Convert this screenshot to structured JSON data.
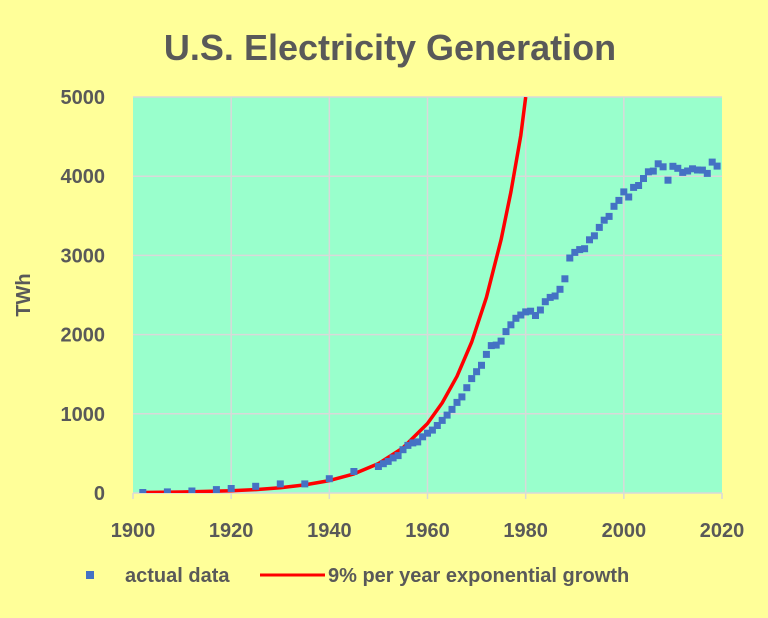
{
  "chart_data": {
    "type": "scatter",
    "title": "U.S. Electricity Generation",
    "xlabel": "",
    "ylabel": "TWh",
    "xlim": [
      1900,
      2020
    ],
    "ylim": [
      0,
      5000
    ],
    "x_ticks": [
      "1900",
      "1920",
      "1940",
      "1960",
      "1980",
      "2000",
      "2020"
    ],
    "y_ticks": [
      "0",
      "1000",
      "2000",
      "3000",
      "4000",
      "5000"
    ],
    "grid": true,
    "legend_position": "bottom",
    "colors": {
      "background": "#ffff99",
      "plot_area": "#99ffcc",
      "grid": "#d9d9d9",
      "actual_data": "#4472c4",
      "exponential": "#ff0000"
    },
    "series": [
      {
        "name": "actual data",
        "type": "scatter",
        "x": [
          1902,
          1907,
          1912,
          1917,
          1920,
          1925,
          1930,
          1935,
          1940,
          1945,
          1950,
          1951,
          1952,
          1953,
          1954,
          1955,
          1956,
          1957,
          1958,
          1959,
          1960,
          1961,
          1962,
          1963,
          1964,
          1965,
          1966,
          1967,
          1968,
          1969,
          1970,
          1971,
          1972,
          1973,
          1974,
          1975,
          1976,
          1977,
          1978,
          1979,
          1980,
          1981,
          1982,
          1983,
          1984,
          1985,
          1986,
          1987,
          1988,
          1989,
          1990,
          1991,
          1992,
          1993,
          1994,
          1995,
          1996,
          1997,
          1998,
          1999,
          2000,
          2001,
          2002,
          2003,
          2004,
          2005,
          2006,
          2007,
          2008,
          2009,
          2010,
          2011,
          2012,
          2013,
          2014,
          2015,
          2016,
          2017,
          2018,
          2019
        ],
        "y": [
          6,
          14,
          25,
          43,
          57,
          85,
          115,
          115,
          180,
          271,
          334,
          370,
          399,
          443,
          472,
          547,
          601,
          632,
          645,
          710,
          755,
          794,
          852,
          917,
          984,
          1055,
          1144,
          1214,
          1329,
          1445,
          1532,
          1613,
          1750,
          1861,
          1867,
          1918,
          2038,
          2124,
          2206,
          2247,
          2286,
          2295,
          2241,
          2310,
          2416,
          2470,
          2487,
          2572,
          2704,
          2967,
          3038,
          3073,
          3084,
          3197,
          3247,
          3353,
          3444,
          3492,
          3620,
          3695,
          3802,
          3737,
          3858,
          3883,
          3971,
          4055,
          4065,
          4157,
          4119,
          3950,
          4125,
          4100,
          4048,
          4066,
          4094,
          4078,
          4077,
          4035,
          4178,
          4127
        ]
      },
      {
        "name": "9% per year exponential growth",
        "type": "line",
        "x": [
          1902,
          1910,
          1920,
          1925,
          1930,
          1935,
          1940,
          1945,
          1950,
          1955,
          1960,
          1963,
          1966,
          1969,
          1972,
          1975,
          1977,
          1979,
          1980
        ],
        "y": [
          6,
          12,
          28,
          43,
          66,
          102,
          157,
          241,
          371,
          571,
          878,
          1137,
          1473,
          1907,
          2470,
          3199,
          3800,
          4515,
          5000
        ]
      }
    ]
  }
}
